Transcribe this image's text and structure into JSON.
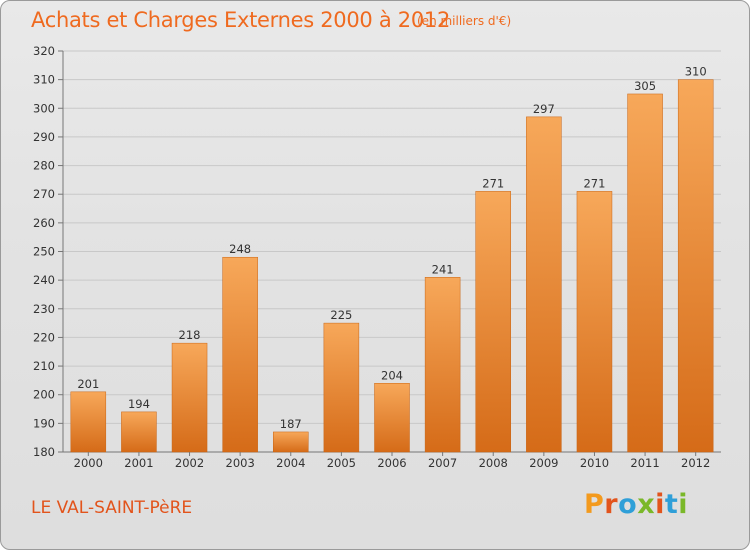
{
  "header": {
    "title": "Achats et Charges Externes 2000 à 2012",
    "unit": "(en milliers d'€)"
  },
  "footer": {
    "place": "LE VAL-SAINT-PèRE",
    "brand": "Proxiti",
    "brand_colors": [
      "#f39a1e",
      "#e2541c",
      "#2f9fd8",
      "#7ab829",
      "#e2541c",
      "#2f9fd8",
      "#7ab829"
    ]
  },
  "colors": {
    "title": "#ef6a1f",
    "bar_top": "#f7a85a",
    "bar_bottom": "#d56b18",
    "grid": "#c8c8c8"
  },
  "chart_data": {
    "type": "bar",
    "title": "Achats et Charges Externes 2000 à 2012",
    "xlabel": "",
    "ylabel": "",
    "categories": [
      "2000",
      "2001",
      "2002",
      "2003",
      "2004",
      "2005",
      "2006",
      "2007",
      "2008",
      "2009",
      "2010",
      "2011",
      "2012"
    ],
    "values": [
      201,
      194,
      218,
      248,
      187,
      225,
      204,
      241,
      271,
      297,
      271,
      305,
      310
    ],
    "ylim": [
      180,
      320
    ],
    "yticks": [
      180,
      190,
      200,
      210,
      220,
      230,
      240,
      250,
      260,
      270,
      280,
      290,
      300,
      310,
      320
    ],
    "grid": true,
    "legend": "none"
  }
}
